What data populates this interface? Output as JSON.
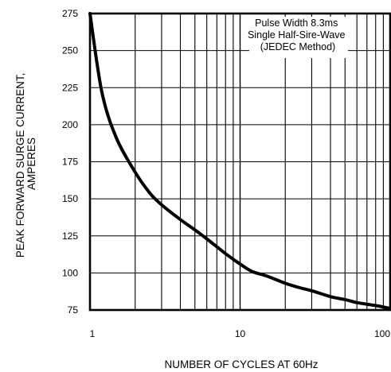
{
  "chart_data": {
    "type": "line",
    "xlabel": "NUMBER OF CYCLES AT 60Hz",
    "ylabel_lines": [
      "PEAK FORWARD SURGE CURRENT,",
      "AMPERES"
    ],
    "annotation_lines": [
      "Pulse Width 8.3ms",
      "Single Half-Sire-Wave",
      "(JEDEC Method)"
    ],
    "x_scale": "log",
    "xlim": [
      1,
      100
    ],
    "ylim": [
      75,
      275
    ],
    "x_ticks": [
      {
        "value": 1,
        "label": "1"
      },
      {
        "value": 10,
        "label": "10"
      },
      {
        "value": 100,
        "label": "100"
      }
    ],
    "y_ticks": [
      {
        "value": 75,
        "label": "75"
      },
      {
        "value": 100,
        "label": "100"
      },
      {
        "value": 125,
        "label": "125"
      },
      {
        "value": 150,
        "label": "150"
      },
      {
        "value": 175,
        "label": "175"
      },
      {
        "value": 200,
        "label": "200"
      },
      {
        "value": 225,
        "label": "225"
      },
      {
        "value": 250,
        "label": "250"
      },
      {
        "value": 275,
        "label": "275"
      }
    ],
    "grid": true,
    "legend": "none",
    "series": [
      {
        "color": "#000000",
        "x": [
          1,
          1.2,
          1.5,
          2,
          2.5,
          3,
          4,
          5,
          6,
          8,
          10,
          12,
          15,
          20,
          25,
          30,
          40,
          50,
          60,
          80,
          100
        ],
        "values": [
          275,
          222,
          191,
          168,
          154,
          146,
          136,
          129,
          123,
          113,
          106,
          101,
          98,
          93,
          90,
          88,
          84,
          82,
          80,
          78,
          76
        ]
      }
    ]
  }
}
